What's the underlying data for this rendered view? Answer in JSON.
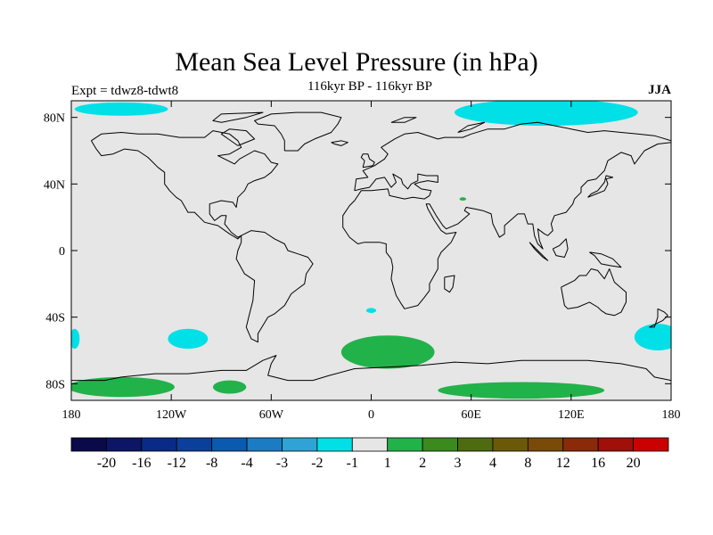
{
  "title": "Mean Sea Level Pressure (in hPa)",
  "subtitle": "116kyr BP - 116kyr BP",
  "expt_label": "Expt = tdwz8-tdwt8",
  "season": "JJA",
  "map": {
    "lon_range": [
      -180,
      180
    ],
    "lat_range": [
      -90,
      90
    ],
    "background_color": "#e6e6e6",
    "lat_ticks": [
      {
        "value": 80,
        "label": "80N"
      },
      {
        "value": 40,
        "label": "40N"
      },
      {
        "value": 0,
        "label": "0"
      },
      {
        "value": -40,
        "label": "40S"
      },
      {
        "value": -80,
        "label": "80S"
      }
    ],
    "lon_ticks": [
      {
        "value": -180,
        "label": "180"
      },
      {
        "value": -120,
        "label": "120W"
      },
      {
        "value": -60,
        "label": "60W"
      },
      {
        "value": 0,
        "label": "0"
      },
      {
        "value": 60,
        "label": "60E"
      },
      {
        "value": 120,
        "label": "120E"
      },
      {
        "value": 180,
        "label": "180"
      }
    ]
  },
  "colorbar": {
    "colors": [
      "#0a0a4a",
      "#0c1566",
      "#0a2a88",
      "#0a3f9c",
      "#0a5ab0",
      "#1b7cc4",
      "#2fa3d6",
      "#00e0e6",
      "#e6e6e6",
      "#22b24a",
      "#3b8a1e",
      "#4e6b10",
      "#6a5a08",
      "#7a4a08",
      "#8a2a08",
      "#a01008",
      "#cc0000"
    ],
    "labels": [
      "-20",
      "-16",
      "-12",
      "-8",
      "-4",
      "-3",
      "-2",
      "-1",
      "1",
      "2",
      "3",
      "4",
      "8",
      "12",
      "16",
      "20"
    ]
  },
  "anomalies": [
    {
      "name": "arctic-pacific-negative",
      "level": "-1",
      "color": "#00e0e6",
      "lon_c": -150,
      "lat_c": 85,
      "lon_r": 28,
      "lat_r": 4
    },
    {
      "name": "arctic-siberia-negative",
      "level": "-1",
      "color": "#00e0e6",
      "lon_c": 105,
      "lat_c": 83,
      "lon_r": 55,
      "lat_r": 8
    },
    {
      "name": "south-pacific-negative",
      "level": "-1",
      "color": "#00e0e6",
      "lon_c": -110,
      "lat_c": -53,
      "lon_r": 12,
      "lat_r": 6
    },
    {
      "name": "tasman-negative",
      "level": "-1",
      "color": "#00e0e6",
      "lon_c": 172,
      "lat_c": -52,
      "lon_r": 14,
      "lat_r": 8
    },
    {
      "name": "south-atlantic-small-negative",
      "level": "-1",
      "color": "#00e0e6",
      "lon_c": 0,
      "lat_c": -36,
      "lon_r": 3,
      "lat_r": 1.5
    },
    {
      "name": "west-edge-negative",
      "level": "-1",
      "color": "#00e0e6",
      "lon_c": -178,
      "lat_c": -53,
      "lon_r": 3,
      "lat_r": 6
    },
    {
      "name": "southern-ocean-positive",
      "level": "2",
      "color": "#22b24a",
      "lon_c": 10,
      "lat_c": -61,
      "lon_r": 28,
      "lat_r": 10
    },
    {
      "name": "antarctic-west-positive",
      "level": "2",
      "color": "#22b24a",
      "lon_c": -150,
      "lat_c": -82,
      "lon_r": 32,
      "lat_r": 6
    },
    {
      "name": "antarctic-ross-positive",
      "level": "2",
      "color": "#22b24a",
      "lon_c": -85,
      "lat_c": -82,
      "lon_r": 10,
      "lat_r": 4
    },
    {
      "name": "antarctic-east-positive",
      "level": "2",
      "color": "#22b24a",
      "lon_c": 90,
      "lat_c": -84,
      "lon_r": 50,
      "lat_r": 5
    },
    {
      "name": "caspian-positive",
      "level": "2",
      "color": "#22b24a",
      "lon_c": 55,
      "lat_c": 31,
      "lon_r": 2,
      "lat_r": 1
    }
  ]
}
